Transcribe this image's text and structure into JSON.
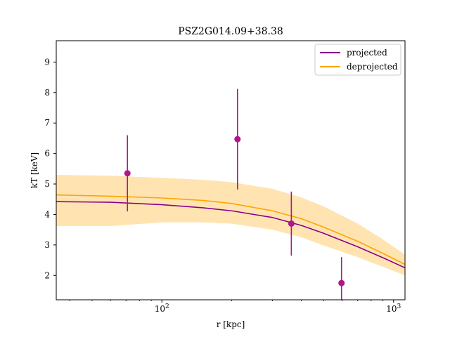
{
  "chart_data": {
    "type": "line",
    "title": "PSZ2G014.09+38.38",
    "xlabel": "r [kpc]",
    "ylabel": "kT [keV]",
    "xscale": "log",
    "xlim": [
      35,
      1120
    ],
    "ylim": [
      1.2,
      9.7
    ],
    "grid": false,
    "legend_position": "top-right",
    "x_ticks": [
      {
        "value": 100,
        "base": "10",
        "exp": "2"
      },
      {
        "value": 1000,
        "base": "10",
        "exp": "3"
      }
    ],
    "y_ticks": [
      2,
      3,
      4,
      5,
      6,
      7,
      8,
      9
    ],
    "series": [
      {
        "name": "projected",
        "color": "#8b008b",
        "x": [
          35,
          60,
          100,
          150,
          200,
          300,
          400,
          500,
          700,
          900,
          1120
        ],
        "y": [
          4.42,
          4.4,
          4.32,
          4.22,
          4.12,
          3.9,
          3.64,
          3.38,
          2.94,
          2.58,
          2.25
        ]
      },
      {
        "name": "deprojected",
        "color": "#ffa500",
        "x": [
          35,
          60,
          100,
          150,
          200,
          300,
          400,
          500,
          700,
          900,
          1120
        ],
        "y": [
          4.64,
          4.6,
          4.54,
          4.46,
          4.36,
          4.12,
          3.86,
          3.58,
          3.12,
          2.72,
          2.36
        ],
        "band_color": "#ffa500",
        "band_upper": [
          5.3,
          5.27,
          5.2,
          5.14,
          5.06,
          4.84,
          4.56,
          4.26,
          3.7,
          3.18,
          2.68
        ],
        "band_lower": [
          3.62,
          3.62,
          3.74,
          3.74,
          3.7,
          3.5,
          3.25,
          2.98,
          2.6,
          2.28,
          2.0
        ]
      }
    ],
    "points": {
      "color": "#b0158b",
      "x": [
        71,
        212,
        362,
        596
      ],
      "y": [
        5.35,
        6.47,
        3.7,
        1.75
      ],
      "yerr": [
        1.25,
        1.65,
        1.05,
        0.85
      ]
    }
  }
}
